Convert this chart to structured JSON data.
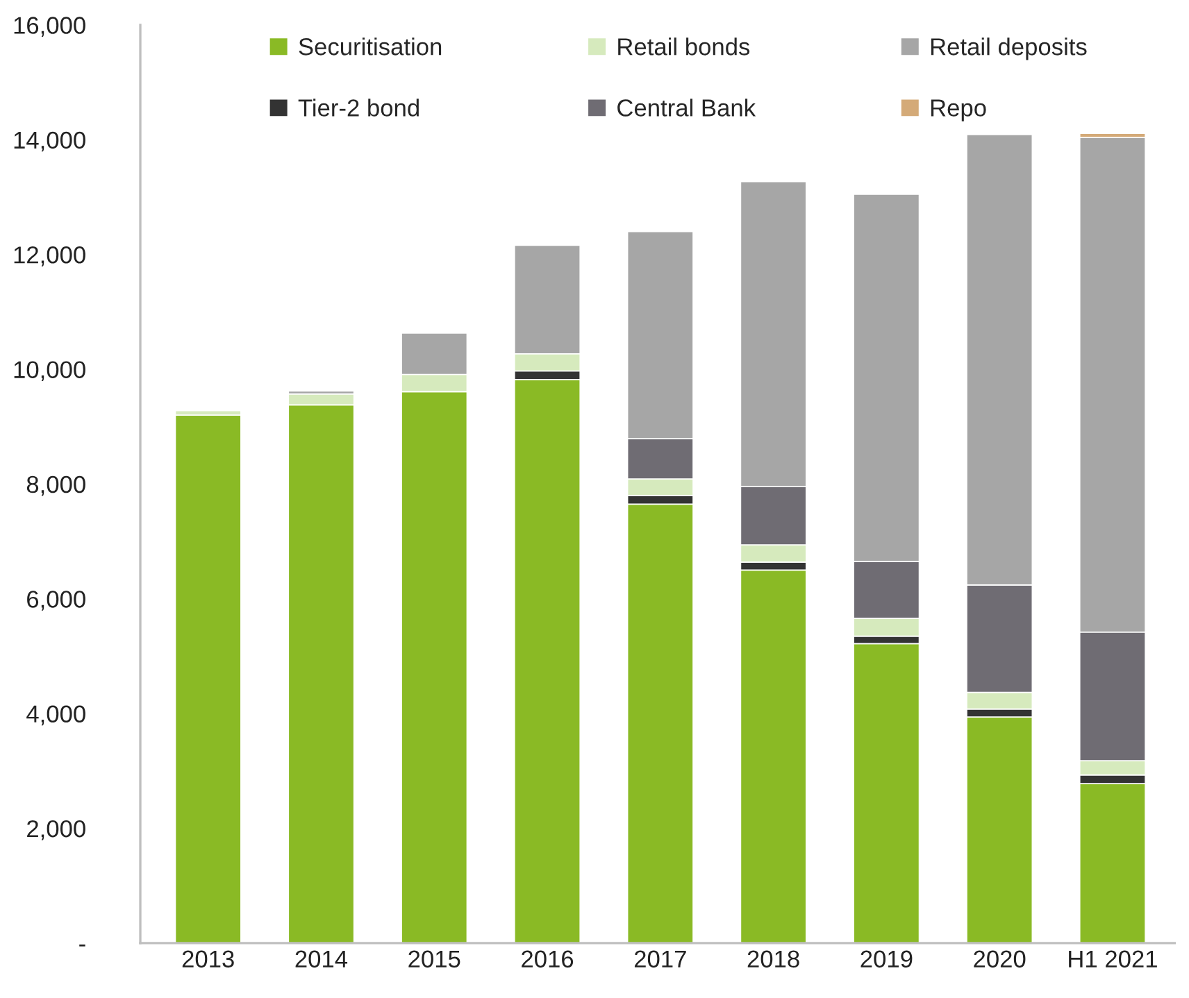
{
  "chart_data": {
    "type": "bar",
    "stacked": true,
    "categories": [
      "2013",
      "2014",
      "2015",
      "2016",
      "2017",
      "2018",
      "2019",
      "2020",
      "H1 2021"
    ],
    "series": [
      {
        "name": "Securitisation",
        "color": "#8aba25",
        "values": [
          9200,
          9380,
          9610,
          9820,
          7650,
          6500,
          5220,
          3940,
          2780
        ]
      },
      {
        "name": "Tier-2 bond",
        "color": "#333333",
        "values": [
          null,
          null,
          null,
          150,
          150,
          140,
          130,
          140,
          150
        ]
      },
      {
        "name": "Retail bonds",
        "color": "#d6eabd",
        "values": [
          80,
          190,
          300,
          300,
          290,
          300,
          310,
          290,
          250
        ]
      },
      {
        "name": "Central Bank",
        "color": "#6f6c73",
        "values": [
          null,
          null,
          null,
          null,
          700,
          1020,
          990,
          1870,
          2240
        ]
      },
      {
        "name": "Retail deposits",
        "color": "#a6a6a6",
        "values": [
          null,
          50,
          720,
          1890,
          3610,
          5310,
          6400,
          7850,
          8620
        ]
      },
      {
        "name": "Repo",
        "color": "#d4aa78",
        "values": [
          null,
          null,
          null,
          null,
          null,
          null,
          null,
          null,
          70
        ]
      }
    ],
    "ylim": [
      0,
      16000
    ],
    "yticks": [
      {
        "value": 0,
        "label": "-"
      },
      {
        "value": 2000,
        "label": "2,000"
      },
      {
        "value": 4000,
        "label": "4,000"
      },
      {
        "value": 6000,
        "label": "6,000"
      },
      {
        "value": 8000,
        "label": "8,000"
      },
      {
        "value": 10000,
        "label": "10,000"
      },
      {
        "value": 12000,
        "label": "12,000"
      },
      {
        "value": 14000,
        "label": "14,000"
      },
      {
        "value": 16000,
        "label": "16,000"
      }
    ],
    "grid": false,
    "legend": "top"
  }
}
